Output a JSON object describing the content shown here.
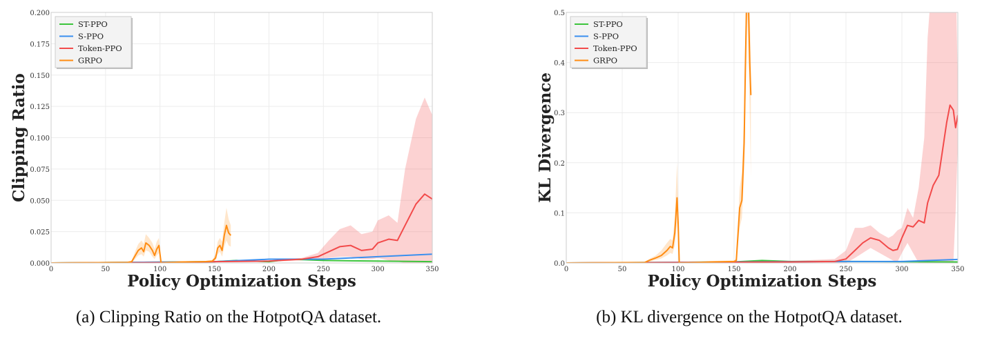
{
  "captions": {
    "a": "(a) Clipping Ratio on the HotpotQA dataset.",
    "b": "(b) KL divergence on the HotpotQA dataset."
  },
  "colors": {
    "ST-PPO": "#3cc43c",
    "S-PPO": "#3a8fef",
    "Token-PPO": "#f24a4a",
    "GRPO": "#ff8c12"
  },
  "chart_data": [
    {
      "type": "line",
      "xlabel": "Policy Optimization Steps",
      "ylabel": "Clipping Ratio",
      "xlim": [
        0,
        350
      ],
      "ylim": [
        0,
        0.2
      ],
      "xticks": [
        "0",
        "50",
        "100",
        "150",
        "200",
        "250",
        "300",
        "350"
      ],
      "yticks": [
        "0.000",
        "0.025",
        "0.050",
        "0.075",
        "0.100",
        "0.125",
        "0.150",
        "0.175",
        "0.200"
      ],
      "grid": true,
      "legend": "top-left",
      "series": [
        {
          "name": "ST-PPO",
          "x": [
            0,
            150,
            170,
            200,
            220,
            250,
            300,
            350
          ],
          "y": [
            0,
            0.001,
            0.002,
            0.001,
            0.003,
            0.002,
            0.0015,
            0.001
          ]
        },
        {
          "name": "S-PPO",
          "x": [
            0,
            150,
            200,
            250,
            300,
            350
          ],
          "y": [
            0,
            0.001,
            0.003,
            0.003,
            0.005,
            0.007
          ]
        },
        {
          "name": "Token-PPO",
          "x": [
            0,
            100,
            150,
            200,
            230,
            245,
            255,
            265,
            275,
            285,
            295,
            300,
            310,
            318,
            325,
            335,
            343,
            350
          ],
          "y": [
            0,
            0.0003,
            0.001,
            0.0015,
            0.003,
            0.005,
            0.009,
            0.013,
            0.014,
            0.01,
            0.011,
            0.016,
            0.019,
            0.018,
            0.03,
            0.047,
            0.055,
            0.051
          ],
          "upper": [
            0,
            0.0005,
            0.0015,
            0.002,
            0.004,
            0.008,
            0.018,
            0.027,
            0.03,
            0.023,
            0.025,
            0.034,
            0.038,
            0.032,
            0.075,
            0.115,
            0.132,
            0.118
          ],
          "lower": [
            0,
            0,
            0.0005,
            0.001,
            0.002,
            0.003,
            0.004,
            0.005,
            0.005,
            0.003,
            0.003,
            0.004,
            0.002,
            0.001,
            0,
            0,
            0,
            0
          ]
        },
        {
          "name": "GRPO",
          "x": [
            0,
            70,
            74,
            78,
            80,
            83,
            85,
            87,
            90,
            93,
            95,
            97,
            99,
            101,
            105,
            120,
            140,
            148,
            151,
            153,
            155,
            157,
            159,
            161,
            163,
            165
          ],
          "y": [
            0,
            0.0005,
            0.001,
            0.007,
            0.01,
            0.012,
            0.009,
            0.016,
            0.014,
            0.01,
            0.006,
            0.011,
            0.014,
            0,
            0.0003,
            0.0008,
            0.001,
            0.0015,
            0.004,
            0.012,
            0.014,
            0.01,
            0.022,
            0.03,
            0.024,
            0.022
          ],
          "upper": [
            0,
            0.0008,
            0.002,
            0.011,
            0.015,
            0.018,
            0.015,
            0.023,
            0.02,
            0.016,
            0.011,
            0.017,
            0.02,
            0.001,
            0.0006,
            0.001,
            0.0015,
            0.002,
            0.007,
            0.017,
            0.02,
            0.017,
            0.032,
            0.044,
            0.035,
            0.03
          ],
          "lower": [
            0,
            0.0002,
            0,
            0.004,
            0.006,
            0.007,
            0.005,
            0.01,
            0.009,
            0.005,
            0.003,
            0.006,
            0.008,
            0,
            0,
            0.0005,
            0.0006,
            0.001,
            0.002,
            0.007,
            0.009,
            0.005,
            0.013,
            0.018,
            0.014,
            0.013
          ]
        }
      ]
    },
    {
      "type": "line",
      "xlabel": "Policy Optimization Steps",
      "ylabel": "KL Divergence",
      "xlim": [
        0,
        350
      ],
      "ylim": [
        0,
        0.5
      ],
      "xticks": [
        "0",
        "50",
        "100",
        "150",
        "200",
        "250",
        "300",
        "350"
      ],
      "yticks": [
        "0.0",
        "0.1",
        "0.2",
        "0.3",
        "0.4",
        "0.5"
      ],
      "grid": true,
      "legend": "top-left",
      "series": [
        {
          "name": "ST-PPO",
          "x": [
            0,
            150,
            175,
            200,
            250,
            350
          ],
          "y": [
            0,
            0.002,
            0.005,
            0.003,
            0.003,
            0.002
          ]
        },
        {
          "name": "S-PPO",
          "x": [
            0,
            240,
            300,
            350
          ],
          "y": [
            0,
            0.003,
            0.003,
            0.007
          ]
        },
        {
          "name": "Token-PPO",
          "x": [
            0,
            200,
            240,
            250,
            258,
            265,
            272,
            280,
            288,
            292,
            296,
            300,
            305,
            310,
            315,
            320,
            323,
            328,
            333,
            340,
            343,
            346,
            348,
            350
          ],
          "y": [
            0,
            0.002,
            0.003,
            0.008,
            0.025,
            0.04,
            0.05,
            0.045,
            0.03,
            0.025,
            0.027,
            0.05,
            0.075,
            0.072,
            0.085,
            0.08,
            0.12,
            0.155,
            0.175,
            0.28,
            0.315,
            0.305,
            0.27,
            0.295
          ],
          "upper": [
            0,
            0.004,
            0.008,
            0.025,
            0.07,
            0.07,
            0.075,
            0.06,
            0.05,
            0.055,
            0.065,
            0.07,
            0.11,
            0.09,
            0.15,
            0.25,
            0.45,
            0.6,
            0.6,
            0.6,
            0.6,
            0.6,
            0.6,
            0.35
          ],
          "lower": [
            0,
            0,
            0,
            0,
            0.01,
            0.02,
            0.03,
            0.02,
            0.01,
            0.005,
            0.002,
            0.02,
            0.04,
            0.02,
            0,
            0,
            0,
            0,
            0,
            0,
            0,
            0,
            0.1,
            0.24
          ]
        },
        {
          "name": "GRPO",
          "x": [
            0,
            70,
            75,
            80,
            85,
            90,
            93,
            95,
            97,
            99,
            100,
            101,
            130,
            150,
            152,
            155,
            157,
            159,
            160,
            161,
            162,
            163,
            164,
            165
          ],
          "y": [
            0,
            0.001,
            0.006,
            0.01,
            0.015,
            0.025,
            0.033,
            0.03,
            0.06,
            0.13,
            0.08,
            0,
            0.002,
            0.003,
            0.005,
            0.11,
            0.125,
            0.24,
            0.38,
            0.5,
            0.6,
            0.5,
            0.4,
            0.335
          ],
          "upper": [
            0,
            0.002,
            0.009,
            0.015,
            0.025,
            0.04,
            0.048,
            0.045,
            0.09,
            0.2,
            0.12,
            0.001,
            0.004,
            0.005,
            0.01,
            0.15,
            0.18,
            0.3,
            0.45,
            0.6,
            0.6,
            0.6,
            0.5,
            0.4
          ],
          "lower": [
            0,
            0,
            0.003,
            0.006,
            0.009,
            0.015,
            0.02,
            0.018,
            0.035,
            0.08,
            0.05,
            0,
            0.001,
            0.001,
            0.002,
            0.07,
            0.09,
            0.18,
            0.3,
            0.4,
            0.5,
            0.4,
            0.3,
            0.17
          ]
        }
      ]
    }
  ]
}
